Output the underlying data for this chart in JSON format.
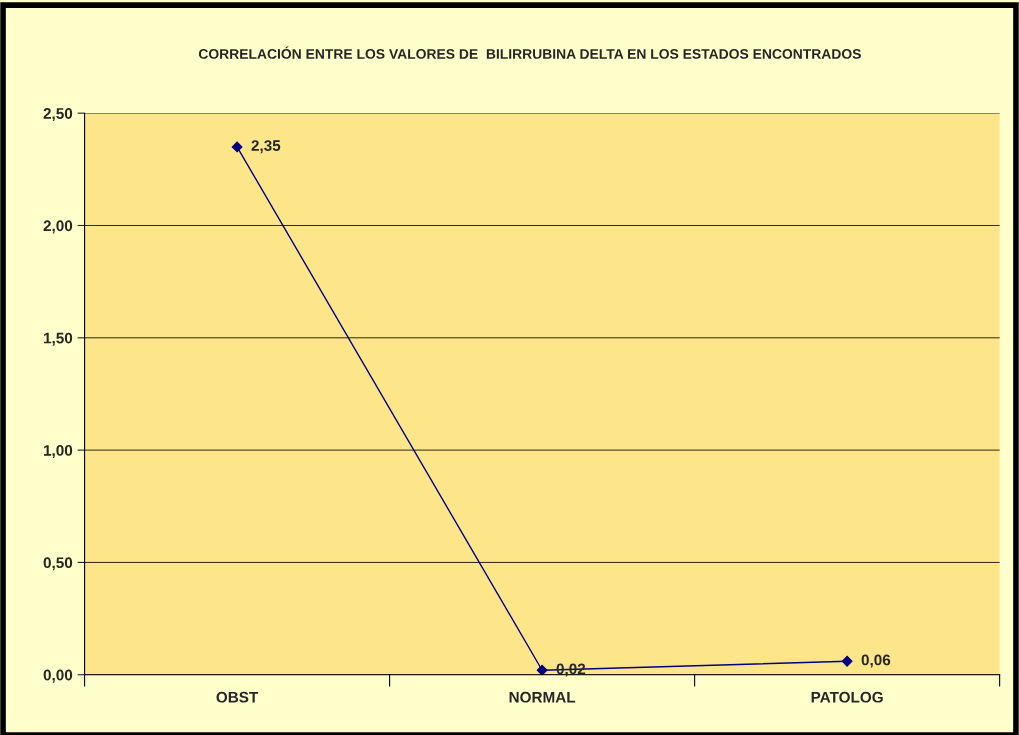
{
  "chart_data": {
    "type": "line",
    "title": "CORRELACIÓN ENTRE LOS VALORES DE  BILIRRUBINA DELTA EN LOS ESTADOS ENCONTRADOS",
    "categories": [
      "OBST",
      "NORMAL",
      "PATOLOG"
    ],
    "series": [
      {
        "color": "#000080",
        "values": [
          2.35,
          0.02,
          0.06
        ],
        "value_labels": [
          "2,35",
          "0,02",
          "0,06"
        ]
      }
    ],
    "ylim": [
      0,
      2.5
    ],
    "yticks": [
      {
        "value": 0,
        "label": "0,00"
      },
      {
        "value": 0.5,
        "label": "0,50"
      },
      {
        "value": 1.0,
        "label": "1,00"
      },
      {
        "value": 1.5,
        "label": "1,50"
      },
      {
        "value": 2.0,
        "label": "2,00"
      },
      {
        "value": 2.5,
        "label": "2,50"
      }
    ],
    "grid": "y",
    "marker": "diamond",
    "line_style": "solid",
    "legend": false
  }
}
